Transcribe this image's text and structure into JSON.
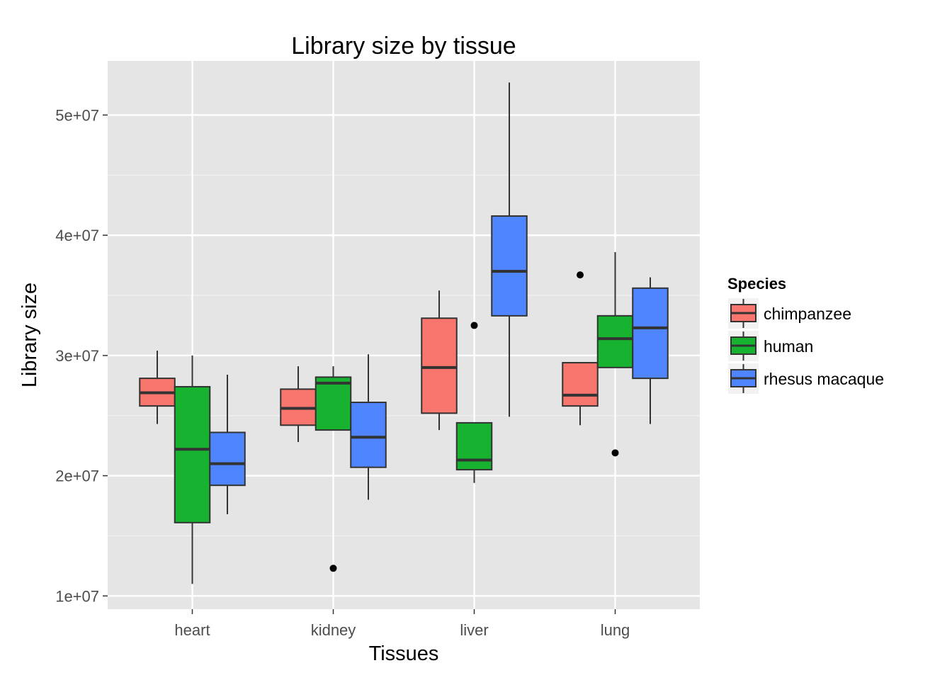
{
  "chart_data": {
    "type": "boxplot",
    "title": "Library size by tissue",
    "xlabel": "Tissues",
    "ylabel": "Library size",
    "categories": [
      "heart",
      "kidney",
      "liver",
      "lung"
    ],
    "y_ticks": [
      {
        "value": 10000000,
        "label": "1e+07"
      },
      {
        "value": 20000000,
        "label": "2e+07"
      },
      {
        "value": 30000000,
        "label": "3e+07"
      },
      {
        "value": 40000000,
        "label": "4e+07"
      },
      {
        "value": 50000000,
        "label": "5e+07"
      }
    ],
    "ylim": [
      8900000,
      54500000
    ],
    "grid": true,
    "legend": {
      "title": "Species",
      "placement": "right"
    },
    "series": [
      {
        "name": "chimpanzee",
        "color": "#F8766D",
        "boxes": [
          {
            "category": "heart",
            "min": 24300000,
            "q1": 25800000,
            "median": 26900000,
            "q3": 28100000,
            "max": 30400000,
            "outliers": []
          },
          {
            "category": "kidney",
            "min": 22800000,
            "q1": 24200000,
            "median": 25600000,
            "q3": 27200000,
            "max": 29100000,
            "outliers": []
          },
          {
            "category": "liver",
            "min": 23800000,
            "q1": 25200000,
            "median": 29000000,
            "q3": 33100000,
            "max": 35400000,
            "outliers": []
          },
          {
            "category": "lung",
            "min": 24200000,
            "q1": 25800000,
            "median": 26700000,
            "q3": 29400000,
            "max": 29400000,
            "outliers": [
              36700000
            ]
          }
        ]
      },
      {
        "name": "human",
        "color": "#17B330",
        "boxes": [
          {
            "category": "heart",
            "min": 11000000,
            "q1": 16100000,
            "median": 22200000,
            "q3": 27400000,
            "max": 30000000,
            "outliers": []
          },
          {
            "category": "kidney",
            "min": 23800000,
            "q1": 23800000,
            "median": 27700000,
            "q3": 28200000,
            "max": 29100000,
            "outliers": [
              12300000
            ]
          },
          {
            "category": "liver",
            "min": 19400000,
            "q1": 20500000,
            "median": 21300000,
            "q3": 24400000,
            "max": 24400000,
            "outliers": [
              32500000
            ]
          },
          {
            "category": "lung",
            "min": 29000000,
            "q1": 29000000,
            "median": 31400000,
            "q3": 33300000,
            "max": 38600000,
            "outliers": [
              21900000
            ]
          }
        ]
      },
      {
        "name": "rhesus macaque",
        "color": "#4F86FF",
        "boxes": [
          {
            "category": "heart",
            "min": 16800000,
            "q1": 19200000,
            "median": 21000000,
            "q3": 23600000,
            "max": 28400000,
            "outliers": []
          },
          {
            "category": "kidney",
            "min": 18000000,
            "q1": 20700000,
            "median": 23200000,
            "q3": 26100000,
            "max": 30100000,
            "outliers": []
          },
          {
            "category": "liver",
            "min": 24900000,
            "q1": 33300000,
            "median": 37000000,
            "q3": 41600000,
            "max": 52700000,
            "outliers": []
          },
          {
            "category": "lung",
            "min": 24300000,
            "q1": 28100000,
            "median": 32300000,
            "q3": 35600000,
            "max": 36500000,
            "outliers": []
          }
        ]
      }
    ]
  }
}
